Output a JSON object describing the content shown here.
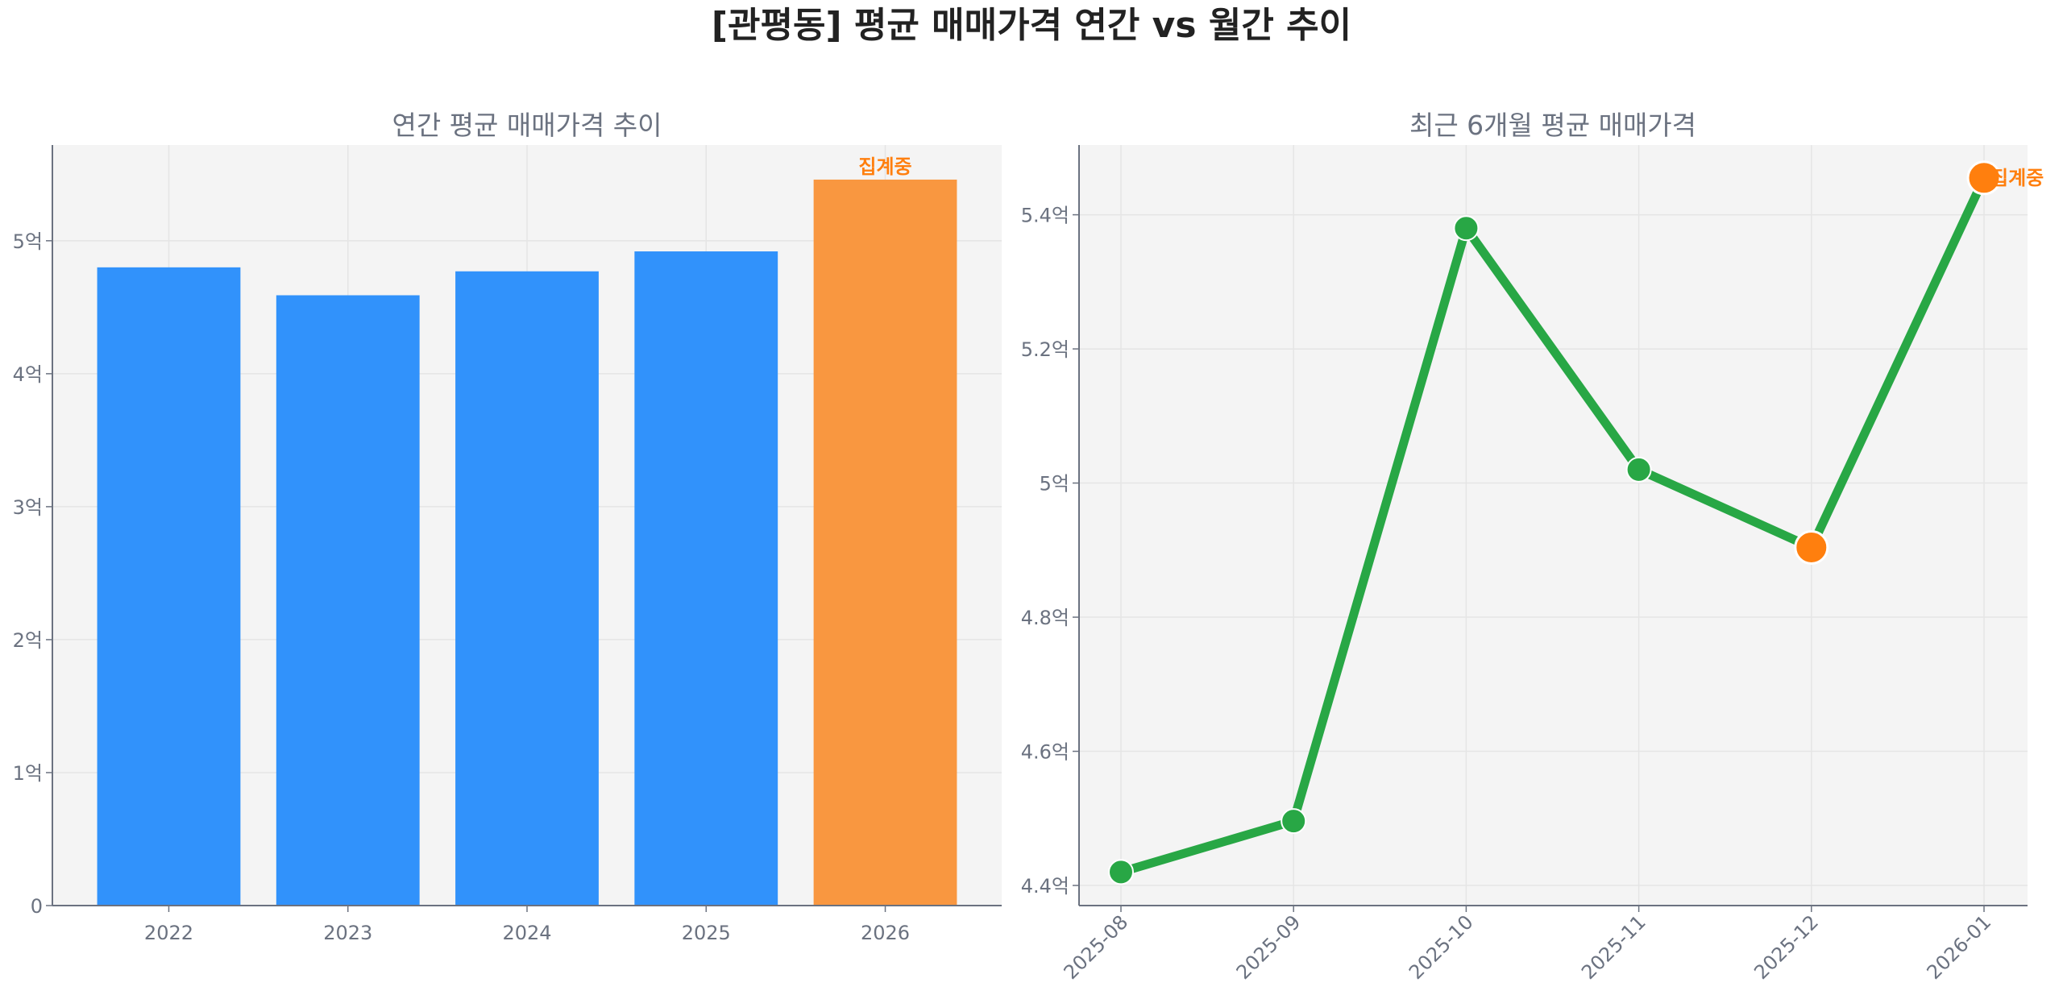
{
  "title": "[관평동] 평균 매매가격 연간 vs 월간 추이",
  "chart_data": [
    {
      "type": "bar",
      "title": "연간 평균 매매가격 추이",
      "categories": [
        "2022",
        "2023",
        "2024",
        "2025",
        "2026"
      ],
      "values": [
        4.8,
        4.59,
        4.77,
        4.92,
        5.46
      ],
      "unit": "억",
      "ylim": [
        0,
        5.72
      ],
      "yticks": [
        0,
        1,
        2,
        3,
        4,
        5
      ],
      "ytick_labels": [
        "0",
        "1억",
        "2억",
        "3억",
        "4억",
        "5억"
      ],
      "grid": true,
      "colors": [
        "#3192fb",
        "#3192fb",
        "#3192fb",
        "#3192fb",
        "#f99740"
      ],
      "annotations": [
        {
          "category": "2026",
          "text": "집계중"
        }
      ]
    },
    {
      "type": "line",
      "title": "최근 6개월 평균 매매가격",
      "x": [
        "2025-08",
        "2025-09",
        "2025-10",
        "2025-11",
        "2025-12",
        "2026-01"
      ],
      "values": [
        4.42,
        4.496,
        5.38,
        5.02,
        4.904,
        5.455
      ],
      "unit": "억",
      "ylim": [
        4.37,
        5.504
      ],
      "yticks": [
        4.4,
        4.6,
        4.8,
        5.0,
        5.2,
        5.4
      ],
      "ytick_labels": [
        "4.4억",
        "4.6억",
        "4.8억",
        "5억",
        "5.2억",
        "5.4억"
      ],
      "grid": true,
      "line_color": "#28a745",
      "highlight_color": "#ff7f0e",
      "highlighted_points": [
        "2025-12",
        "2026-01"
      ],
      "annotations": [
        {
          "x": "2026-01",
          "text": "집계중"
        }
      ]
    }
  ]
}
